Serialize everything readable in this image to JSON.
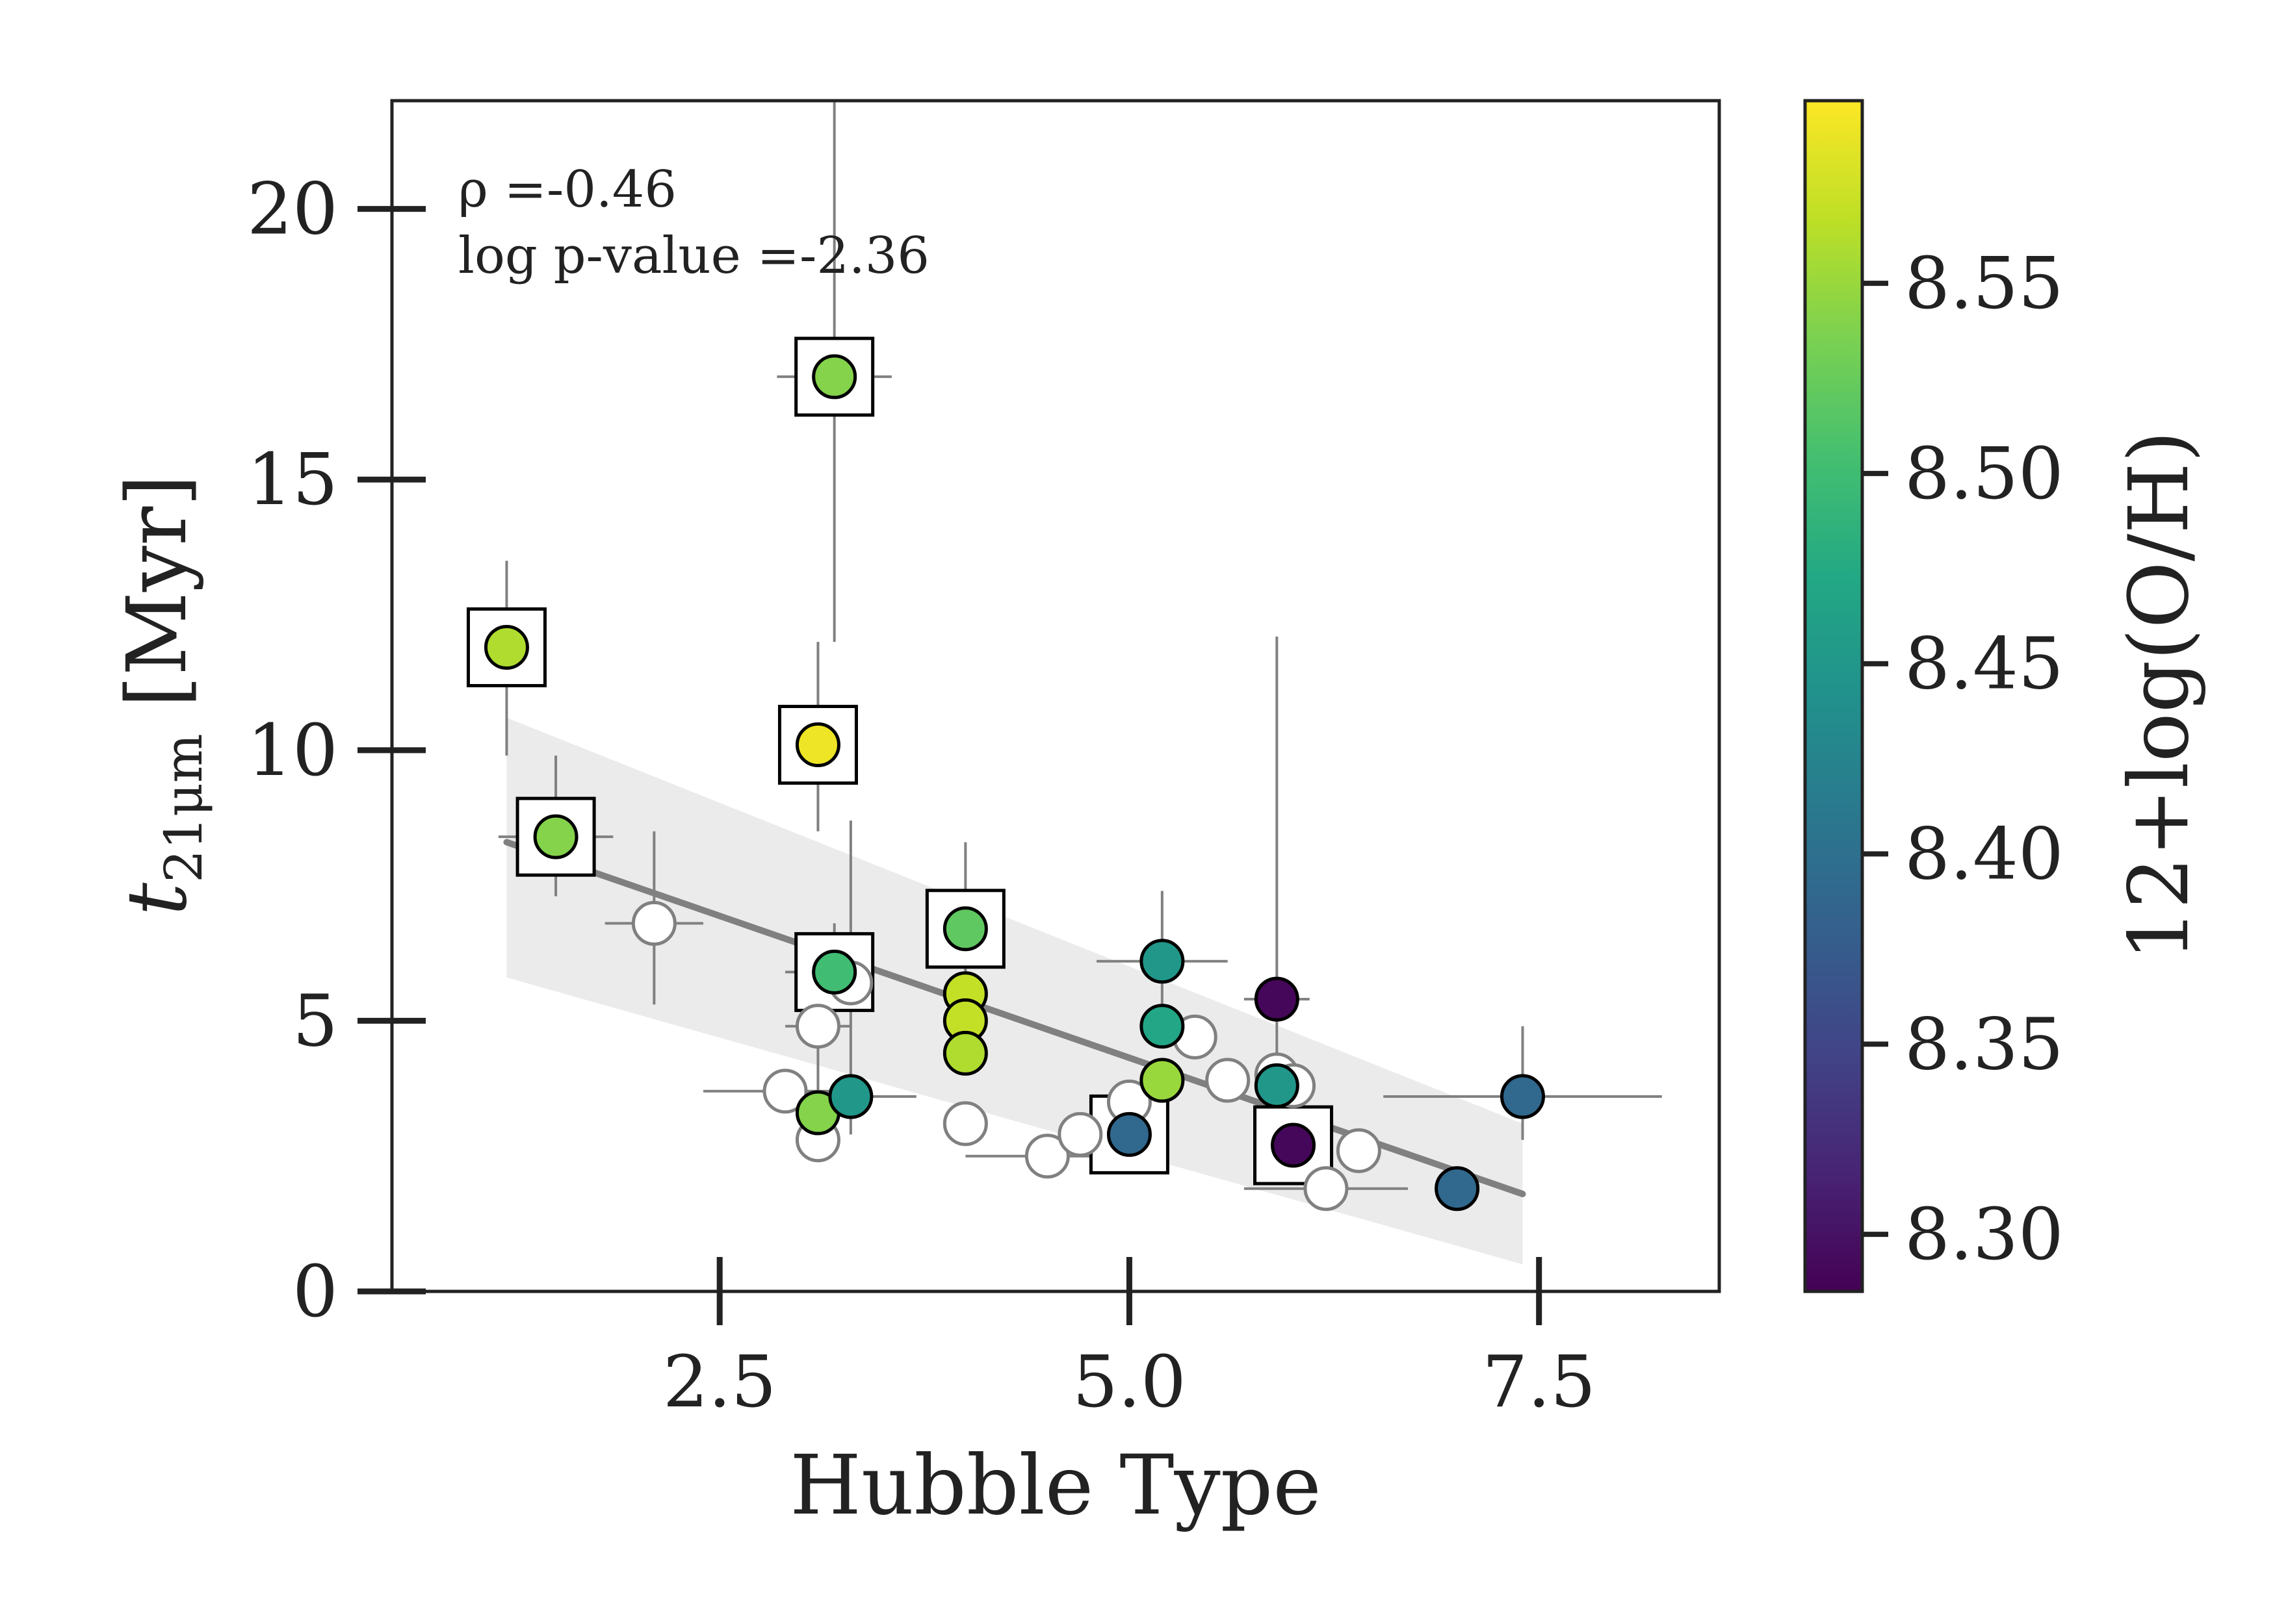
{
  "chart_data": {
    "type": "scatter",
    "xlabel": "Hubble Type",
    "ylabel_main": "t",
    "ylabel_sub": "21μm",
    "ylabel_unit": " [Myr]",
    "xlim": [
      0.5,
      8.6
    ],
    "ylim": [
      0,
      22
    ],
    "xticks": [
      2.5,
      5.0,
      7.5
    ],
    "xtick_labels": [
      "2.5",
      "5.0",
      "7.5"
    ],
    "yticks": [
      0,
      5,
      10,
      15,
      20
    ],
    "ytick_labels": [
      "0",
      "5",
      "10",
      "15",
      "20"
    ],
    "grid": false,
    "annotations": [
      "ρ =-0.46",
      "log p-value =-2.36"
    ],
    "colorbar": {
      "label": "12+log(O/H)",
      "colormap": "viridis",
      "range": [
        8.285,
        8.598
      ],
      "ticks": [
        8.3,
        8.35,
        8.4,
        8.45,
        8.5,
        8.55
      ],
      "tick_labels": [
        "8.30",
        "8.35",
        "8.40",
        "8.45",
        "8.50",
        "8.55"
      ]
    },
    "fit_line": {
      "x": [
        1.2,
        7.4
      ],
      "y": [
        8.3,
        1.8
      ],
      "color": "#808080"
    },
    "confidence_band": {
      "x": [
        1.2,
        7.4
      ],
      "upper": [
        10.6,
        3.1
      ],
      "lower": [
        5.8,
        0.5
      ],
      "color": "#ebebeb"
    },
    "points_colored": [
      {
        "x": 3.2,
        "y": 16.9,
        "metallicity": 8.54,
        "boxed": true,
        "xerr": [
          0.35,
          0.35
        ],
        "yerr": [
          4.9,
          15.0
        ]
      },
      {
        "x": 1.2,
        "y": 11.9,
        "metallicity": 8.56,
        "boxed": true,
        "xerr": [
          0.0,
          0.0
        ],
        "yerr": [
          2.0,
          1.6
        ]
      },
      {
        "x": 3.1,
        "y": 10.1,
        "metallicity": 8.59,
        "boxed": true,
        "xerr": [
          0.0,
          0.0
        ],
        "yerr": [
          1.6,
          1.9
        ]
      },
      {
        "x": 1.5,
        "y": 8.4,
        "metallicity": 8.54,
        "boxed": true,
        "xerr": [
          0.35,
          0.35
        ],
        "yerr": [
          1.1,
          1.5
        ]
      },
      {
        "x": 4.0,
        "y": 6.7,
        "metallicity": 8.52,
        "boxed": true,
        "xerr": [
          0.0,
          0.0
        ],
        "yerr": [
          0.9,
          1.6
        ]
      },
      {
        "x": 3.2,
        "y": 5.9,
        "metallicity": 8.5,
        "boxed": true,
        "xerr": [
          0.3,
          0.3
        ],
        "yerr": [
          0.9,
          0.9
        ]
      },
      {
        "x": 4.0,
        "y": 5.5,
        "metallicity": 8.57,
        "boxed": false,
        "xerr": [
          0.0,
          0.0
        ],
        "yerr": [
          0.0,
          0.0
        ]
      },
      {
        "x": 4.0,
        "y": 5.0,
        "metallicity": 8.57,
        "boxed": false,
        "xerr": [
          0.0,
          0.0
        ],
        "yerr": [
          0.0,
          0.0
        ]
      },
      {
        "x": 4.0,
        "y": 4.4,
        "metallicity": 8.56,
        "boxed": false,
        "xerr": [
          0.0,
          0.0
        ],
        "yerr": [
          0.0,
          0.0
        ]
      },
      {
        "x": 3.1,
        "y": 3.3,
        "metallicity": 8.54,
        "boxed": false,
        "xerr": [
          0.0,
          0.0
        ],
        "yerr": [
          0.0,
          0.0
        ]
      },
      {
        "x": 3.3,
        "y": 3.6,
        "metallicity": 8.45,
        "boxed": false,
        "xerr": [
          0.4,
          0.4
        ],
        "yerr": [
          0.7,
          5.1
        ]
      },
      {
        "x": 5.2,
        "y": 6.1,
        "metallicity": 8.45,
        "boxed": false,
        "xerr": [
          0.4,
          0.4
        ],
        "yerr": [
          0.8,
          1.3
        ]
      },
      {
        "x": 5.2,
        "y": 4.9,
        "metallicity": 8.47,
        "boxed": false,
        "xerr": [
          0.0,
          0.0
        ],
        "yerr": [
          0.0,
          0.0
        ]
      },
      {
        "x": 5.2,
        "y": 3.9,
        "metallicity": 8.55,
        "boxed": false,
        "xerr": [
          0.0,
          0.0
        ],
        "yerr": [
          0.0,
          0.0
        ]
      },
      {
        "x": 5.0,
        "y": 2.9,
        "metallicity": 8.39,
        "boxed": true,
        "xerr": [
          0.0,
          0.0
        ],
        "yerr": [
          0.0,
          0.0
        ]
      },
      {
        "x": 5.9,
        "y": 5.4,
        "metallicity": 8.29,
        "boxed": false,
        "xerr": [
          0.2,
          0.2
        ],
        "yerr": [
          1.0,
          6.7
        ]
      },
      {
        "x": 5.9,
        "y": 3.8,
        "metallicity": 8.45,
        "boxed": false,
        "xerr": [
          0.0,
          0.0
        ],
        "yerr": [
          0.0,
          0.0
        ]
      },
      {
        "x": 6.0,
        "y": 2.7,
        "metallicity": 8.29,
        "boxed": true,
        "xerr": [
          0.0,
          0.0
        ],
        "yerr": [
          0.0,
          0.0
        ]
      },
      {
        "x": 7.0,
        "y": 1.9,
        "metallicity": 8.39,
        "boxed": false,
        "xerr": [
          0.0,
          0.0
        ],
        "yerr": [
          0.0,
          0.0
        ]
      },
      {
        "x": 7.4,
        "y": 3.6,
        "metallicity": 8.39,
        "boxed": false,
        "xerr": [
          0.85,
          0.85
        ],
        "yerr": [
          0.8,
          1.3
        ]
      }
    ],
    "points_open": [
      {
        "x": 2.1,
        "y": 6.8,
        "xerr": [
          0.3,
          0.3
        ],
        "yerr": [
          1.5,
          1.7
        ]
      },
      {
        "x": 3.3,
        "y": 5.7,
        "xerr": [
          0.0,
          0.0
        ],
        "yerr": [
          0.0,
          0.0
        ]
      },
      {
        "x": 3.1,
        "y": 4.9,
        "xerr": [
          0.2,
          0.2
        ],
        "yerr": [
          1.3,
          1.3
        ]
      },
      {
        "x": 2.9,
        "y": 3.7,
        "xerr": [
          0.5,
          0.5
        ],
        "yerr": [
          0.0,
          0.0
        ]
      },
      {
        "x": 3.1,
        "y": 2.8,
        "xerr": [
          0.0,
          0.0
        ],
        "yerr": [
          0.0,
          0.0
        ]
      },
      {
        "x": 4.0,
        "y": 3.1,
        "xerr": [
          0.0,
          0.0
        ],
        "yerr": [
          0.0,
          0.0
        ]
      },
      {
        "x": 4.5,
        "y": 2.5,
        "xerr": [
          0.5,
          0.5
        ],
        "yerr": [
          0.0,
          0.0
        ]
      },
      {
        "x": 4.7,
        "y": 2.9,
        "xerr": [
          0.0,
          0.0
        ],
        "yerr": [
          0.0,
          0.0
        ]
      },
      {
        "x": 5.0,
        "y": 3.5,
        "xerr": [
          0.0,
          0.0
        ],
        "yerr": [
          0.0,
          0.0
        ]
      },
      {
        "x": 5.4,
        "y": 4.7,
        "xerr": [
          0.0,
          0.0
        ],
        "yerr": [
          0.0,
          0.0
        ]
      },
      {
        "x": 5.6,
        "y": 3.9,
        "xerr": [
          0.0,
          0.0
        ],
        "yerr": [
          0.0,
          0.0
        ]
      },
      {
        "x": 5.9,
        "y": 4.0,
        "xerr": [
          0.0,
          0.0
        ],
        "yerr": [
          0.0,
          0.0
        ]
      },
      {
        "x": 6.0,
        "y": 3.8,
        "xerr": [
          0.0,
          0.0
        ],
        "yerr": [
          0.0,
          0.0
        ]
      },
      {
        "x": 6.2,
        "y": 1.9,
        "xerr": [
          0.5,
          0.5
        ],
        "yerr": [
          0.0,
          0.0
        ]
      },
      {
        "x": 6.4,
        "y": 2.6,
        "xerr": [
          0.0,
          0.0
        ],
        "yerr": [
          0.0,
          0.0
        ]
      }
    ]
  }
}
